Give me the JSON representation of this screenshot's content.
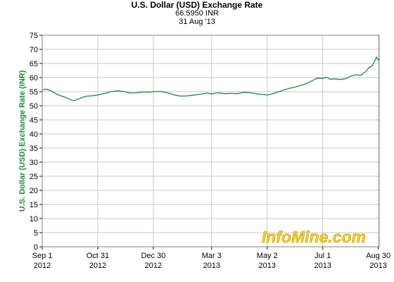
{
  "header": {
    "title": "U.S. Dollar (USD) Exchange Rate",
    "current_value": "66.5950 INR",
    "date": "31 Aug '13"
  },
  "watermark": {
    "text": "InfoMine.com"
  },
  "colors": {
    "line": "#1b8a3a",
    "grid": "#c8c8c8",
    "axis_label": "#1b8a3a",
    "watermark": "#f2cf2a"
  },
  "chart_data": {
    "type": "line",
    "title": "U.S. Dollar (USD) Exchange Rate",
    "subtitle": [
      "66.5950 INR",
      "31 Aug '13"
    ],
    "ylabel": "U.S. Dollar (USD) Exchange Rate (INR)",
    "xlabel": "",
    "ylim": [
      0,
      75
    ],
    "yticks": [
      0,
      5,
      10,
      15,
      20,
      25,
      30,
      35,
      40,
      45,
      50,
      55,
      60,
      65,
      70,
      75
    ],
    "xlim": [
      "2012-09-01",
      "2013-08-31"
    ],
    "xticks": [
      {
        "date": "2012-09-01",
        "label": [
          "Sep 1",
          "2012"
        ]
      },
      {
        "date": "2012-10-31",
        "label": [
          "Oct 31",
          "2012"
        ]
      },
      {
        "date": "2012-12-30",
        "label": [
          "Dec 30",
          "2012"
        ]
      },
      {
        "date": "2013-03-03",
        "label": [
          "Mar 3",
          "2013"
        ]
      },
      {
        "date": "2013-05-02",
        "label": [
          "May 2",
          "2013"
        ]
      },
      {
        "date": "2013-07-01",
        "label": [
          "Jul 1",
          "2013"
        ]
      },
      {
        "date": "2013-08-30",
        "label": [
          "Aug 30",
          "2013"
        ]
      }
    ],
    "grid": true,
    "series": [
      {
        "values": [
          [
            "2012-09-01",
            55.6
          ],
          [
            "2012-09-05",
            55.9
          ],
          [
            "2012-09-10",
            55.4
          ],
          [
            "2012-09-14",
            54.6
          ],
          [
            "2012-09-18",
            53.9
          ],
          [
            "2012-09-22",
            53.4
          ],
          [
            "2012-09-26",
            53.0
          ],
          [
            "2012-10-01",
            52.2
          ],
          [
            "2012-10-05",
            51.8
          ],
          [
            "2012-10-09",
            52.2
          ],
          [
            "2012-10-14",
            52.9
          ],
          [
            "2012-10-19",
            53.4
          ],
          [
            "2012-10-24",
            53.5
          ],
          [
            "2012-10-31",
            53.8
          ],
          [
            "2012-11-07",
            54.3
          ],
          [
            "2012-11-14",
            55.0
          ],
          [
            "2012-11-21",
            55.3
          ],
          [
            "2012-11-28",
            55.1
          ],
          [
            "2012-12-05",
            54.5
          ],
          [
            "2012-12-12",
            54.6
          ],
          [
            "2012-12-19",
            54.9
          ],
          [
            "2012-12-26",
            54.8
          ],
          [
            "2012-12-30",
            55.0
          ],
          [
            "2013-01-07",
            55.1
          ],
          [
            "2013-01-15",
            54.5
          ],
          [
            "2013-01-22",
            53.8
          ],
          [
            "2013-01-29",
            53.4
          ],
          [
            "2013-02-05",
            53.5
          ],
          [
            "2013-02-12",
            53.8
          ],
          [
            "2013-02-19",
            54.1
          ],
          [
            "2013-02-26",
            54.5
          ],
          [
            "2013-03-03",
            54.2
          ],
          [
            "2013-03-10",
            54.6
          ],
          [
            "2013-03-17",
            54.3
          ],
          [
            "2013-03-24",
            54.4
          ],
          [
            "2013-03-31",
            54.3
          ],
          [
            "2013-04-07",
            54.8
          ],
          [
            "2013-04-14",
            54.6
          ],
          [
            "2013-04-21",
            54.2
          ],
          [
            "2013-04-28",
            54.0
          ],
          [
            "2013-05-02",
            53.8
          ],
          [
            "2013-05-08",
            54.3
          ],
          [
            "2013-05-14",
            54.9
          ],
          [
            "2013-05-20",
            55.6
          ],
          [
            "2013-05-26",
            56.2
          ],
          [
            "2013-06-01",
            56.6
          ],
          [
            "2013-06-07",
            57.2
          ],
          [
            "2013-06-13",
            57.8
          ],
          [
            "2013-06-19",
            58.8
          ],
          [
            "2013-06-25",
            59.8
          ],
          [
            "2013-07-01",
            59.7
          ],
          [
            "2013-07-05",
            60.1
          ],
          [
            "2013-07-09",
            59.4
          ],
          [
            "2013-07-15",
            59.5
          ],
          [
            "2013-07-20",
            59.3
          ],
          [
            "2013-07-26",
            59.6
          ],
          [
            "2013-08-01",
            60.6
          ],
          [
            "2013-08-06",
            61.0
          ],
          [
            "2013-08-11",
            60.8
          ],
          [
            "2013-08-16",
            62.0
          ],
          [
            "2013-08-20",
            63.5
          ],
          [
            "2013-08-23",
            64.0
          ],
          [
            "2013-08-26",
            65.8
          ],
          [
            "2013-08-28",
            67.3
          ],
          [
            "2013-08-30",
            66.2
          ],
          [
            "2013-08-31",
            66.6
          ]
        ]
      }
    ]
  }
}
